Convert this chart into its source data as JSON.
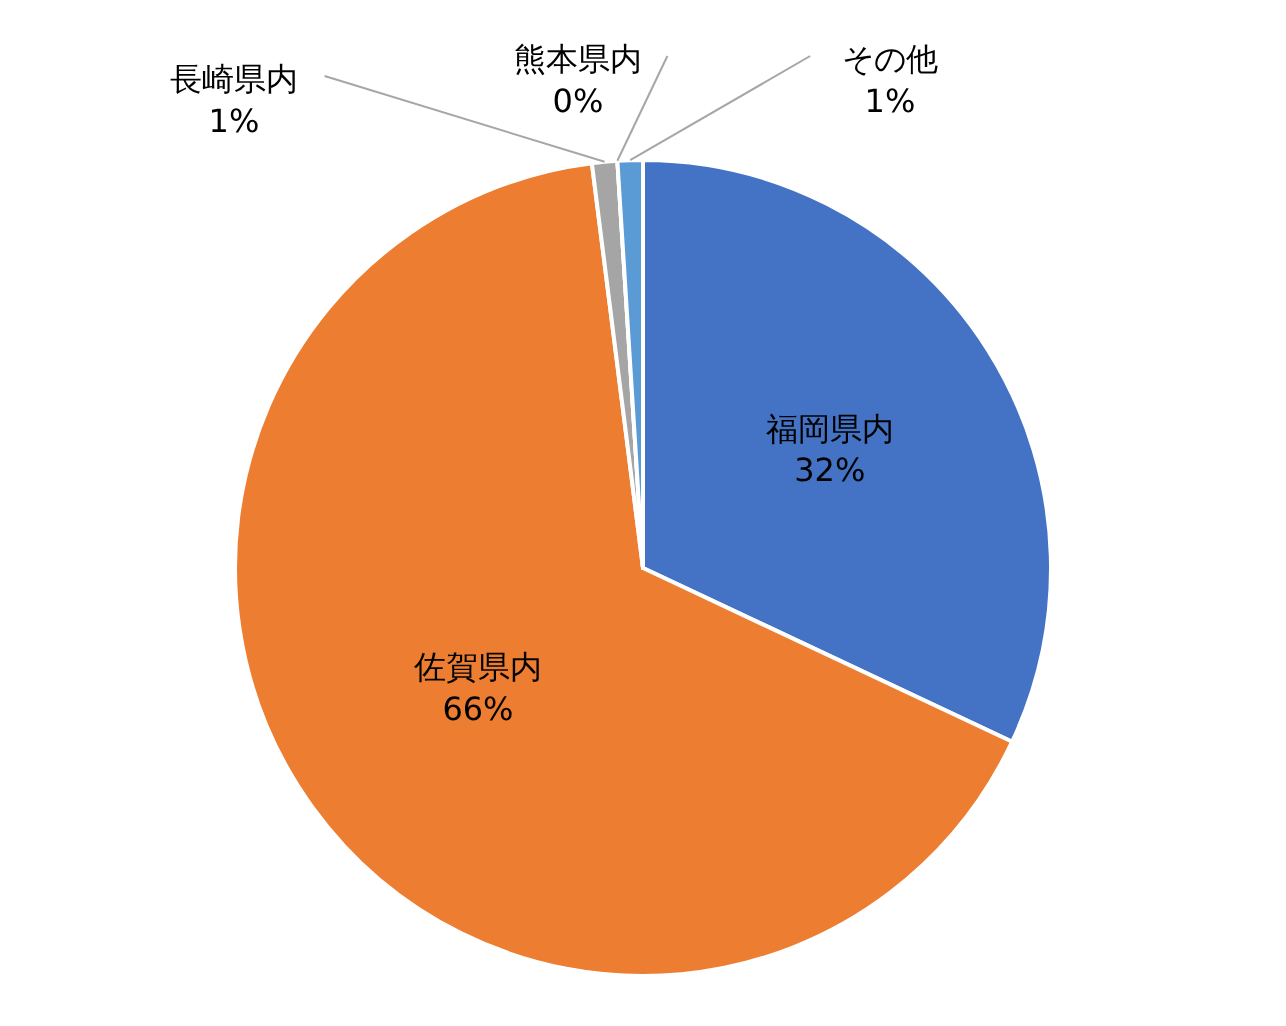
{
  "chart_data": {
    "type": "pie",
    "categories": [
      "福岡県内",
      "佐賀県内",
      "長崎県内",
      "熊本県内",
      "その他"
    ],
    "values": [
      32,
      66,
      1,
      0,
      1
    ],
    "colors": [
      "#4472c4",
      "#ed7d31",
      "#a5a5a5",
      "#ffc000",
      "#5b9bd5"
    ],
    "value_labels": [
      "32%",
      "66%",
      "1%",
      "0%",
      "1%"
    ],
    "legend": false
  }
}
